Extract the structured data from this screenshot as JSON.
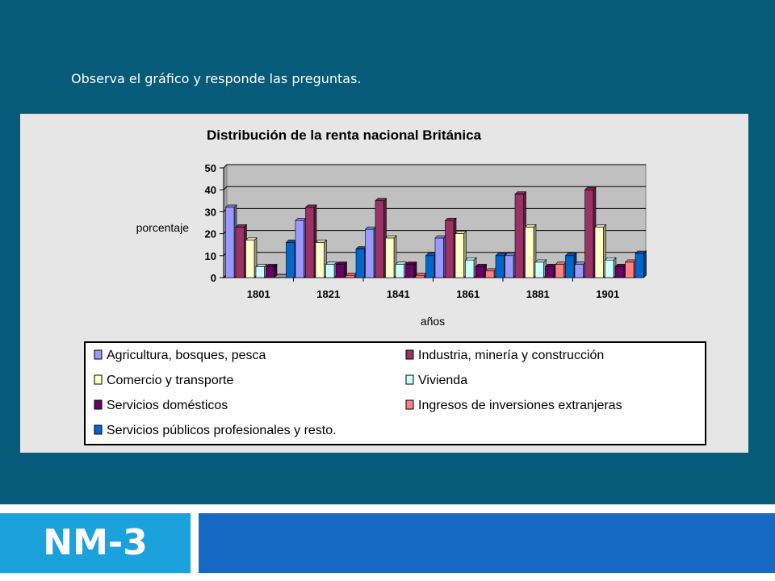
{
  "slide": {
    "instruction": "Observa el gráfico y responde las preguntas.",
    "code": "NM-3"
  },
  "colors": {
    "background": "#055b79",
    "panel": "#e6e6e6",
    "plot_area": "#c0c0c0",
    "footer_left": "#1ba1dc",
    "footer_right": "#1669c2"
  },
  "chart_data": {
    "type": "bar",
    "title": "Distribución de la renta nacional Británica",
    "xlabel": "años",
    "ylabel": "porcentaje",
    "ylim": [
      0,
      50
    ],
    "yticks": [
      "0",
      "10",
      "20",
      "30",
      "40",
      "50"
    ],
    "grid": true,
    "legend_position": "bottom",
    "categories": [
      "1801",
      "1821",
      "1841",
      "1861",
      "1881",
      "1901"
    ],
    "series": [
      {
        "name": "Agricultura, bosques, pesca",
        "color": "#9999ff",
        "values": [
          32,
          26,
          22,
          18,
          10,
          6
        ]
      },
      {
        "name": "Industria, minería y construcción",
        "color": "#993366",
        "values": [
          23,
          32,
          35,
          26,
          38,
          40
        ]
      },
      {
        "name": "Comercio y transporte",
        "color": "#ffffcc",
        "values": [
          17,
          16,
          18,
          20,
          23,
          23
        ]
      },
      {
        "name": "Vivienda",
        "color": "#ccffff",
        "values": [
          5,
          6,
          6,
          8,
          7,
          8
        ]
      },
      {
        "name": "Servicios domésticos",
        "color": "#660066",
        "values": [
          5,
          6,
          6,
          5,
          5,
          5
        ]
      },
      {
        "name": "Ingresos de inversiones extranjeras",
        "color": "#ff8080",
        "values": [
          0,
          1,
          1,
          3,
          6,
          7
        ]
      },
      {
        "name": "Servicios públicos profesionales y resto.",
        "color": "#0066cc",
        "values": [
          16,
          13,
          10,
          10,
          10,
          11
        ]
      }
    ]
  }
}
